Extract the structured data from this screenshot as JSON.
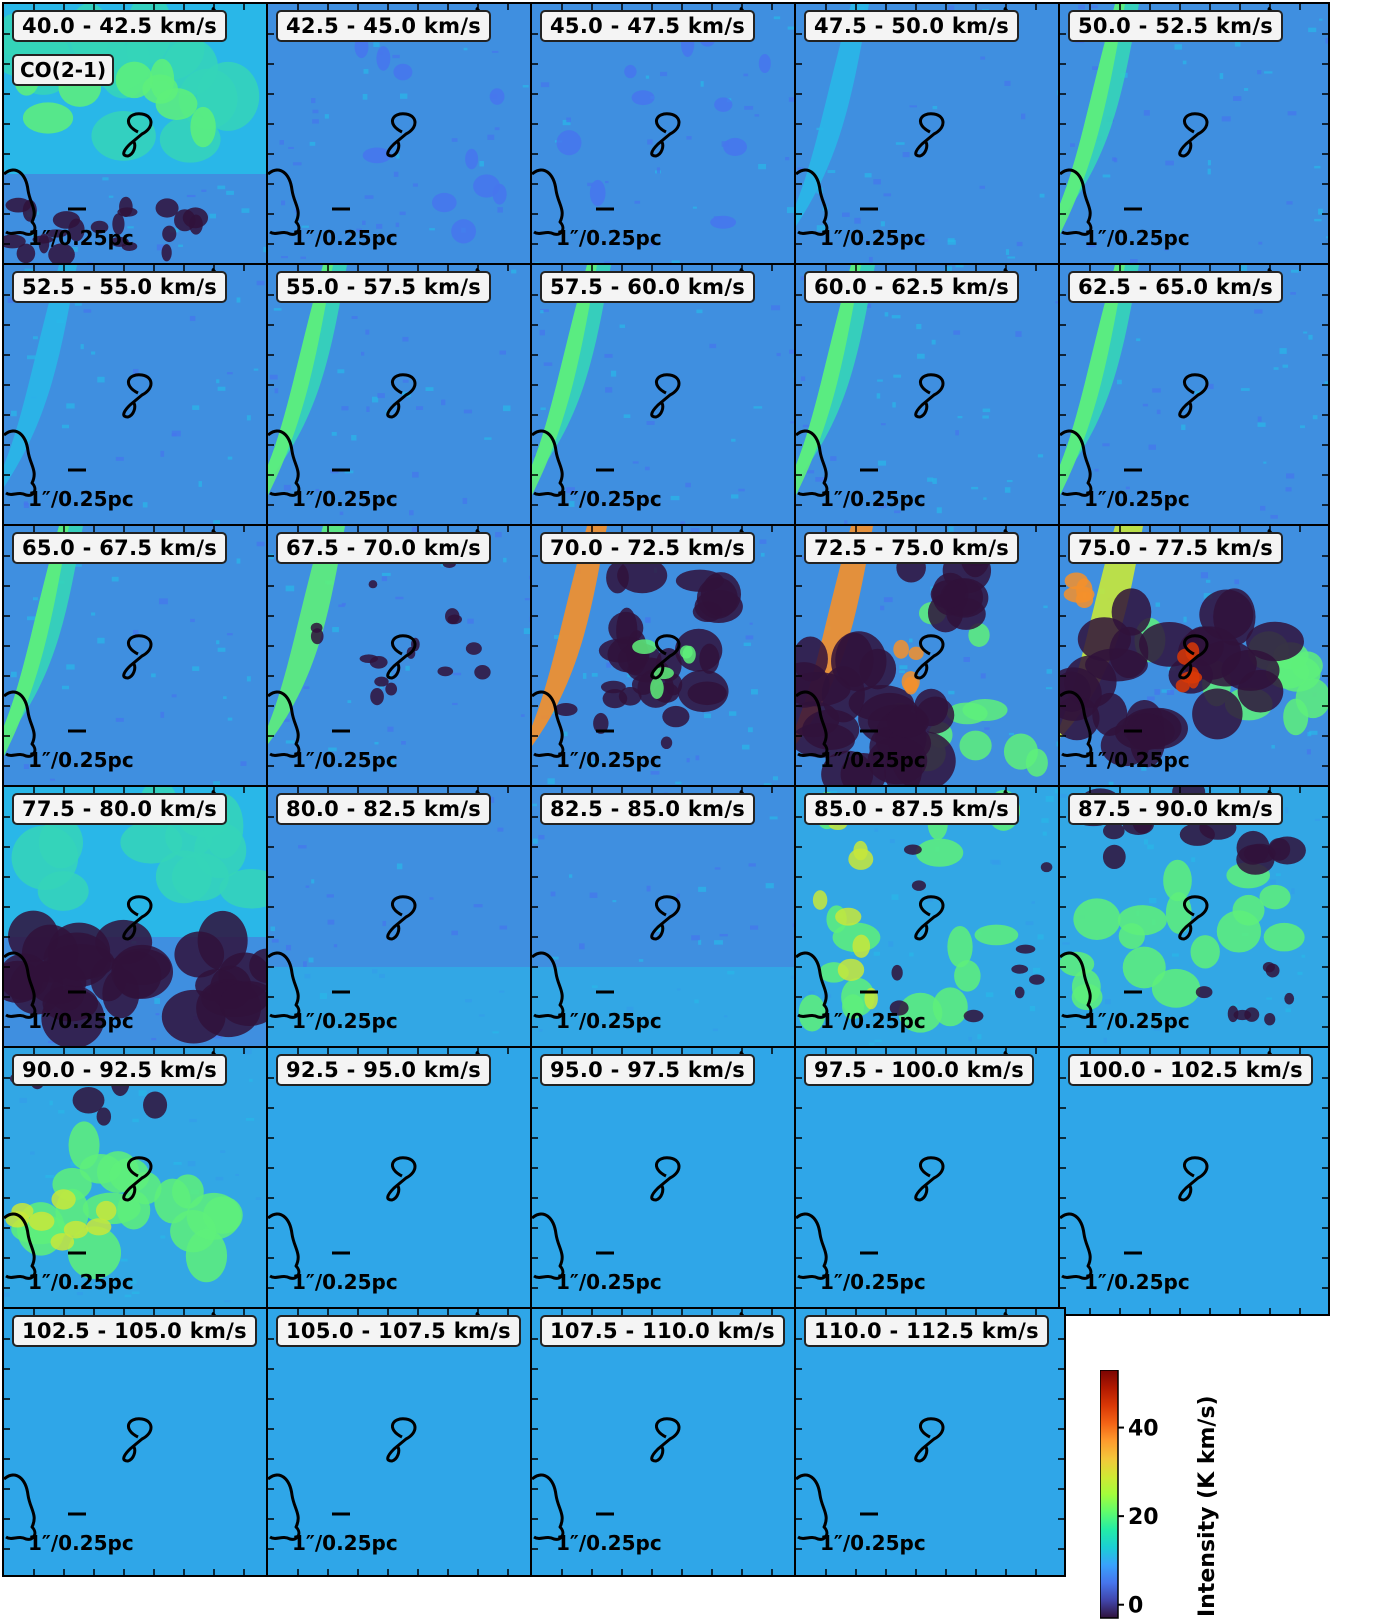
{
  "figure": {
    "line_label": "CO(2-1)",
    "scale_label": "1″/0.25pc"
  },
  "chart_data": {
    "type": "heatmap",
    "panels": [
      {
        "channel": "40.0 - 42.5 km/s",
        "v_min": 40.0,
        "v_max": 42.5,
        "pattern": "green-top-dark-bottom"
      },
      {
        "channel": "42.5 - 45.0 km/s",
        "v_min": 42.5,
        "v_max": 45.0,
        "pattern": "blue-speckle"
      },
      {
        "channel": "45.0 - 47.5 km/s",
        "v_min": 45.0,
        "v_max": 47.5,
        "pattern": "blue-speckle"
      },
      {
        "channel": "47.5 - 50.0 km/s",
        "v_min": 47.5,
        "v_max": 50.0,
        "pattern": "blue-faint-left"
      },
      {
        "channel": "50.0 - 52.5 km/s",
        "v_min": 50.0,
        "v_max": 52.5,
        "pattern": "blue-green-left"
      },
      {
        "channel": "52.5 - 55.0 km/s",
        "v_min": 52.5,
        "v_max": 55.0,
        "pattern": "blue-faint-left"
      },
      {
        "channel": "55.0 - 57.5 km/s",
        "v_min": 55.0,
        "v_max": 57.5,
        "pattern": "blue-green-left"
      },
      {
        "channel": "57.5 - 60.0 km/s",
        "v_min": 57.5,
        "v_max": 60.0,
        "pattern": "blue-green-left"
      },
      {
        "channel": "60.0 - 62.5 km/s",
        "v_min": 60.0,
        "v_max": 62.5,
        "pattern": "blue-green-left"
      },
      {
        "channel": "62.5 - 65.0 km/s",
        "v_min": 62.5,
        "v_max": 65.0,
        "pattern": "blue-green-left"
      },
      {
        "channel": "65.0 - 67.5 km/s",
        "v_min": 65.0,
        "v_max": 67.5,
        "pattern": "blue-green-left"
      },
      {
        "channel": "67.5 - 70.0 km/s",
        "v_min": 67.5,
        "v_max": 70.0,
        "pattern": "blue-dark-patches"
      },
      {
        "channel": "70.0 - 72.5 km/s",
        "v_min": 70.0,
        "v_max": 72.5,
        "pattern": "dark-center"
      },
      {
        "channel": "72.5 - 75.0 km/s",
        "v_min": 72.5,
        "v_max": 75.0,
        "pattern": "dark-large"
      },
      {
        "channel": "75.0 - 77.5 km/s",
        "v_min": 75.0,
        "v_max": 77.5,
        "pattern": "dark-large-hot"
      },
      {
        "channel": "77.5 - 80.0 km/s",
        "v_min": 77.5,
        "v_max": 80.0,
        "pattern": "dark-band-bottom"
      },
      {
        "channel": "80.0 - 82.5 km/s",
        "v_min": 80.0,
        "v_max": 82.5,
        "pattern": "blue-smooth"
      },
      {
        "channel": "82.5 - 85.0 km/s",
        "v_min": 82.5,
        "v_max": 85.0,
        "pattern": "blue-smooth"
      },
      {
        "channel": "85.0 - 87.5 km/s",
        "v_min": 85.0,
        "v_max": 87.5,
        "pattern": "green-filaments"
      },
      {
        "channel": "87.5 - 90.0 km/s",
        "v_min": 87.5,
        "v_max": 90.0,
        "pattern": "green-dark-top"
      },
      {
        "channel": "90.0 - 92.5 km/s",
        "v_min": 90.0,
        "v_max": 92.5,
        "pattern": "green-band-dark-top"
      },
      {
        "channel": "92.5 - 95.0 km/s",
        "v_min": 92.5,
        "v_max": 95.0,
        "pattern": "uniform"
      },
      {
        "channel": "95.0 - 97.5 km/s",
        "v_min": 95.0,
        "v_max": 97.5,
        "pattern": "uniform"
      },
      {
        "channel": "97.5 - 100.0 km/s",
        "v_min": 97.5,
        "v_max": 100.0,
        "pattern": "uniform"
      },
      {
        "channel": "100.0 - 102.5 km/s",
        "v_min": 100.0,
        "v_max": 102.5,
        "pattern": "uniform"
      },
      {
        "channel": "102.5 - 105.0 km/s",
        "v_min": 102.5,
        "v_max": 105.0,
        "pattern": "uniform"
      },
      {
        "channel": "105.0 - 107.5 km/s",
        "v_min": 105.0,
        "v_max": 107.5,
        "pattern": "uniform"
      },
      {
        "channel": "107.5 - 110.0 km/s",
        "v_min": 107.5,
        "v_max": 110.0,
        "pattern": "uniform"
      },
      {
        "channel": "110.0 - 112.5 km/s",
        "v_min": 110.0,
        "v_max": 112.5,
        "pattern": "uniform"
      }
    ],
    "colorbar": {
      "label": "Intensity (K km/s)",
      "range": [
        -3,
        53
      ],
      "ticks": [
        0,
        20,
        40
      ],
      "tick_labels": [
        "0",
        "20",
        "40"
      ],
      "colormap": [
        "#30123b",
        "#4145ab",
        "#4675ed",
        "#39a2fc",
        "#1bcfd4",
        "#24eca6",
        "#61fc6c",
        "#a4fc3b",
        "#d1e834",
        "#f3c63a",
        "#fe9b2d",
        "#f36315",
        "#d93806",
        "#b11901",
        "#7a0403"
      ]
    }
  }
}
